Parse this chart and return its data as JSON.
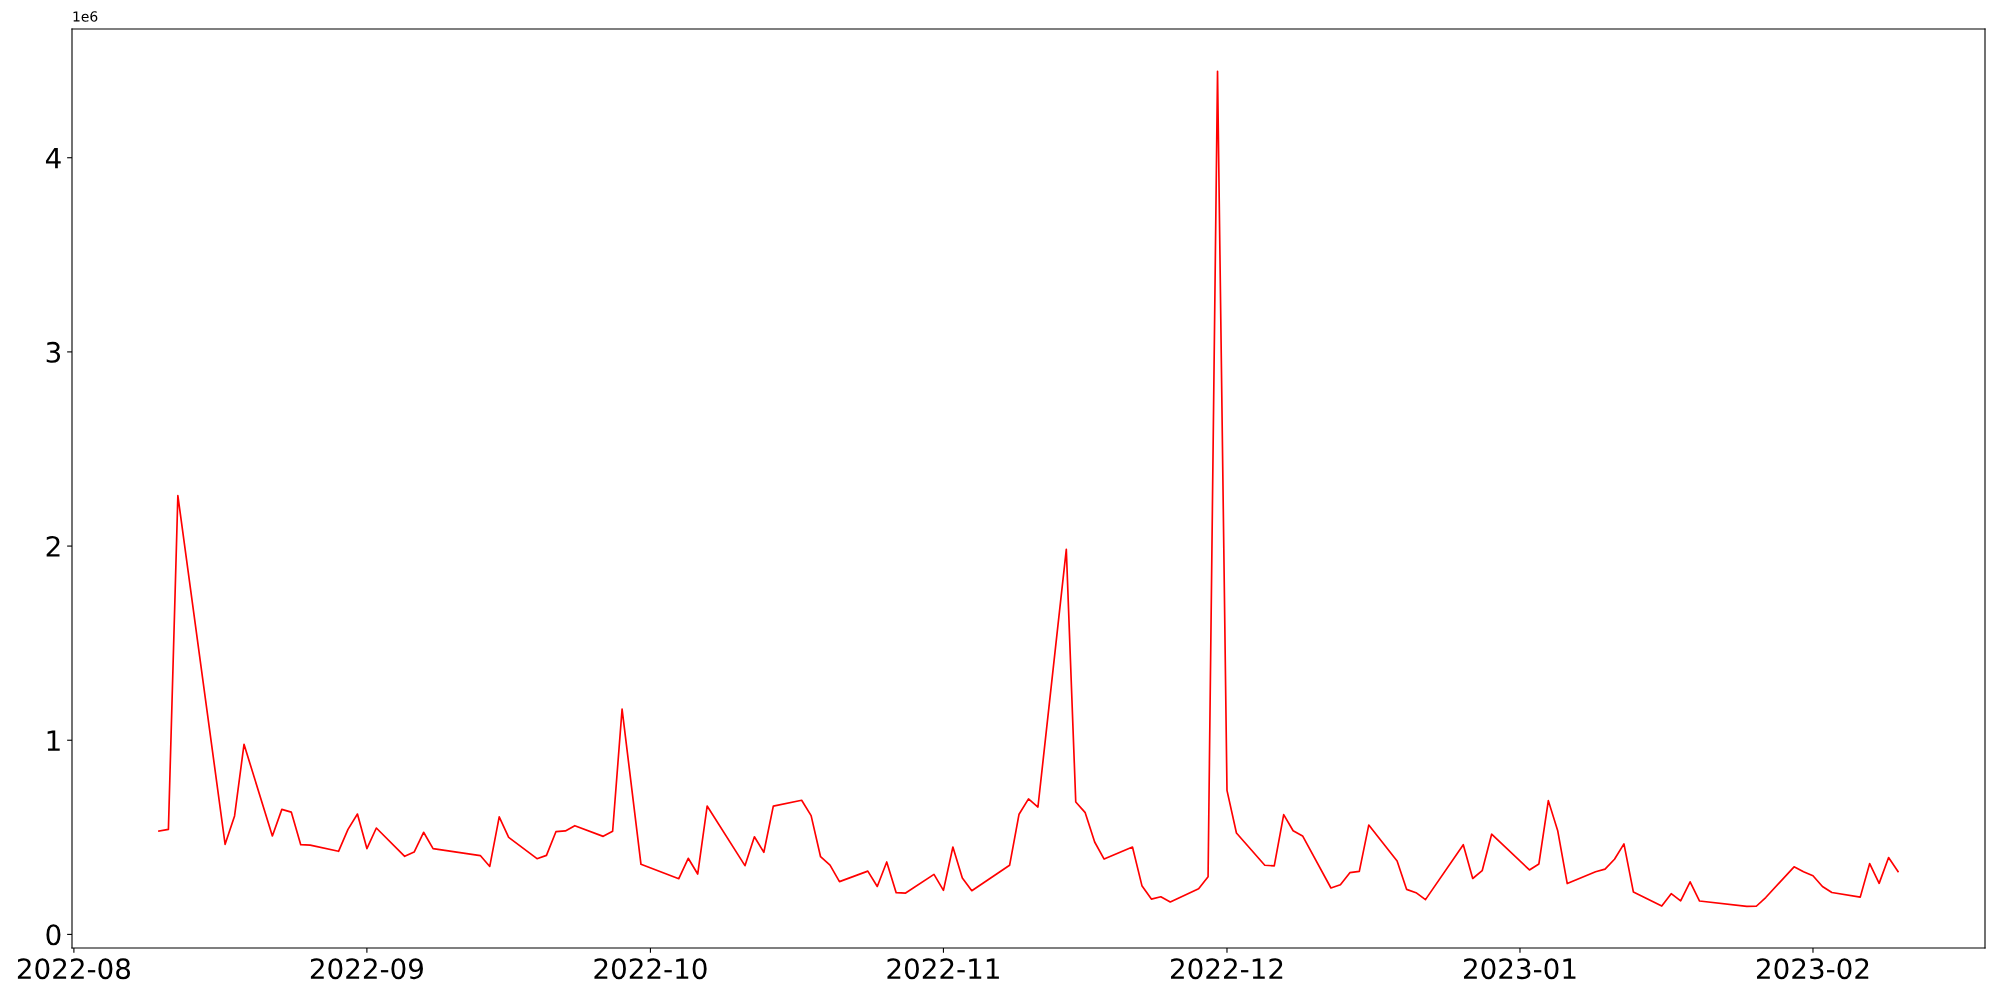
{
  "chart_data": {
    "type": "line",
    "annotations": [
      "1e6"
    ],
    "x": [
      "2022-08-10",
      "2022-08-11",
      "2022-08-12",
      "2022-08-17",
      "2022-08-18",
      "2022-08-19",
      "2022-08-22",
      "2022-08-23",
      "2022-08-24",
      "2022-08-25",
      "2022-08-26",
      "2022-08-29",
      "2022-08-30",
      "2022-08-31",
      "2022-09-01",
      "2022-09-02",
      "2022-09-05",
      "2022-09-06",
      "2022-09-07",
      "2022-09-08",
      "2022-09-13",
      "2022-09-14",
      "2022-09-15",
      "2022-09-16",
      "2022-09-19",
      "2022-09-20",
      "2022-09-21",
      "2022-09-22",
      "2022-09-23",
      "2022-09-26",
      "2022-09-27",
      "2022-09-28",
      "2022-09-30",
      "2022-10-04",
      "2022-10-05",
      "2022-10-06",
      "2022-10-07",
      "2022-10-11",
      "2022-10-12",
      "2022-10-13",
      "2022-10-14",
      "2022-10-17",
      "2022-10-18",
      "2022-10-19",
      "2022-10-20",
      "2022-10-21",
      "2022-10-24",
      "2022-10-25",
      "2022-10-26",
      "2022-10-27",
      "2022-10-28",
      "2022-10-31",
      "2022-11-01",
      "2022-11-02",
      "2022-11-03",
      "2022-11-04",
      "2022-11-08",
      "2022-11-09",
      "2022-11-10",
      "2022-11-11",
      "2022-11-14",
      "2022-11-15",
      "2022-11-16",
      "2022-11-17",
      "2022-11-18",
      "2022-11-21",
      "2022-11-22",
      "2022-11-23",
      "2022-11-24",
      "2022-11-25",
      "2022-11-28",
      "2022-11-29",
      "2022-11-30",
      "2022-12-01",
      "2022-12-02",
      "2022-12-05",
      "2022-12-06",
      "2022-12-07",
      "2022-12-08",
      "2022-12-09",
      "2022-12-12",
      "2022-12-13",
      "2022-12-14",
      "2022-12-15",
      "2022-12-16",
      "2022-12-19",
      "2022-12-20",
      "2022-12-21",
      "2022-12-22",
      "2022-12-26",
      "2022-12-27",
      "2022-12-28",
      "2022-12-29",
      "2023-01-02",
      "2023-01-03",
      "2023-01-04",
      "2023-01-05",
      "2023-01-06",
      "2023-01-09",
      "2023-01-10",
      "2023-01-11",
      "2023-01-12",
      "2023-01-13",
      "2023-01-16",
      "2023-01-17",
      "2023-01-18",
      "2023-01-19",
      "2023-01-20",
      "2023-01-25",
      "2023-01-26",
      "2023-01-27",
      "2023-01-30",
      "2023-01-31",
      "2023-02-01",
      "2023-02-02",
      "2023-02-03",
      "2023-02-06",
      "2023-02-07",
      "2023-02-08",
      "2023-02-09",
      "2023-02-10"
    ],
    "series": [
      {
        "color": "#ff0000",
        "values": [
          0.532,
          0.541,
          2.26,
          0.464,
          0.61,
          0.979,
          0.507,
          0.644,
          0.63,
          0.462,
          0.46,
          0.428,
          0.541,
          0.62,
          0.442,
          0.548,
          0.402,
          0.424,
          0.526,
          0.442,
          0.406,
          0.35,
          0.605,
          0.5,
          0.39,
          0.407,
          0.529,
          0.533,
          0.56,
          0.505,
          0.531,
          1.16,
          0.361,
          0.287,
          0.392,
          0.311,
          0.661,
          0.354,
          0.503,
          0.423,
          0.661,
          0.691,
          0.612,
          0.4,
          0.357,
          0.272,
          0.326,
          0.247,
          0.373,
          0.215,
          0.213,
          0.309,
          0.227,
          0.45,
          0.29,
          0.225,
          0.356,
          0.619,
          0.698,
          0.656,
          1.983,
          0.682,
          0.627,
          0.476,
          0.388,
          0.45,
          0.251,
          0.182,
          0.194,
          0.167,
          0.235,
          0.297,
          4.445,
          0.742,
          0.522,
          0.356,
          0.353,
          0.617,
          0.534,
          0.507,
          0.239,
          0.256,
          0.318,
          0.325,
          0.563,
          0.378,
          0.232,
          0.215,
          0.179,
          0.462,
          0.288,
          0.328,
          0.516,
          0.332,
          0.363,
          0.689,
          0.532,
          0.262,
          0.323,
          0.336,
          0.387,
          0.466,
          0.218,
          0.146,
          0.21,
          0.173,
          0.271,
          0.172,
          0.144,
          0.145,
          0.19,
          0.348,
          0.323,
          0.302,
          0.247,
          0.216,
          0.192,
          0.365,
          0.263,
          0.396,
          0.324
        ]
      }
    ],
    "xlim": [
      "2022-07-31T19:12",
      "2023-02-19T04:48"
    ],
    "xticks": [
      {
        "value": "2022-08-01",
        "label": "2022-08"
      },
      {
        "value": "2022-09-01",
        "label": "2022-09"
      },
      {
        "value": "2022-10-01",
        "label": "2022-10"
      },
      {
        "value": "2022-11-01",
        "label": "2022-11"
      },
      {
        "value": "2022-12-01",
        "label": "2022-12"
      },
      {
        "value": "2023-01-01",
        "label": "2023-01"
      },
      {
        "value": "2023-02-01",
        "label": "2023-02"
      }
    ],
    "ylim": [
      -0.07,
      4.663
    ],
    "yticks": [
      0,
      1,
      2,
      3,
      4
    ],
    "grid": false,
    "marker": "none",
    "line_style": "solid"
  }
}
